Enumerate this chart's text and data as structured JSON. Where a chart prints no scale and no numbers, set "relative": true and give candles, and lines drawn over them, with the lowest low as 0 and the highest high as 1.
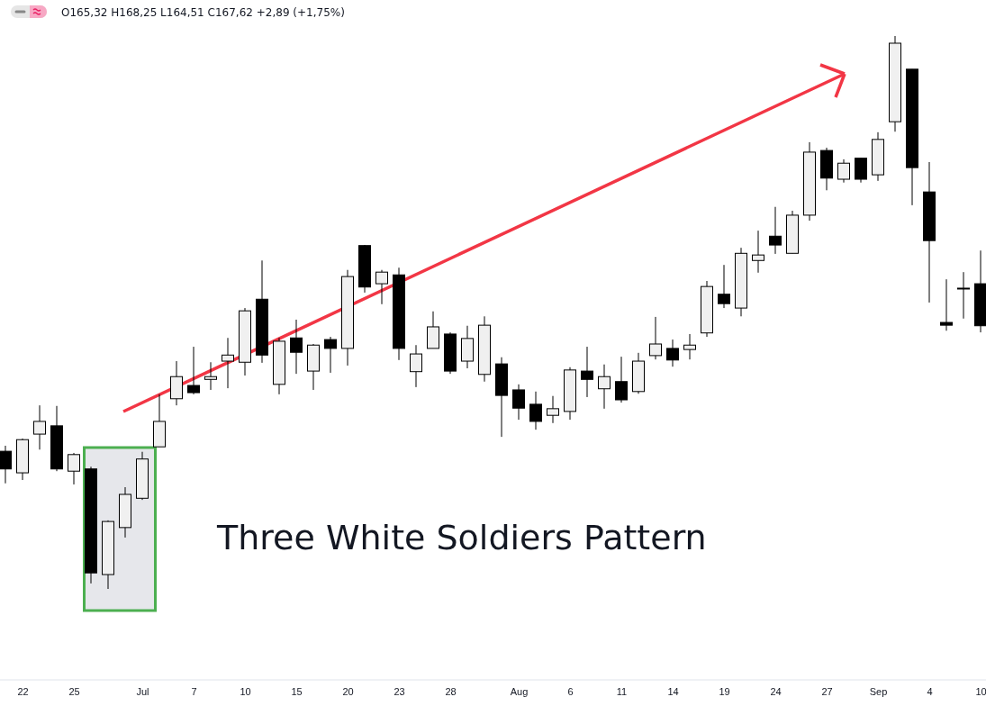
{
  "chart_data": {
    "type": "candlestick",
    "relative": true,
    "categories": [
      null,
      "22",
      null,
      null,
      "25",
      null,
      null,
      null,
      "Jul",
      null,
      null,
      "7",
      null,
      null,
      "10",
      null,
      null,
      "15",
      null,
      null,
      "20",
      null,
      null,
      "23",
      null,
      null,
      "28",
      null,
      null,
      null,
      "Aug",
      null,
      null,
      "6",
      null,
      null,
      "11",
      null,
      null,
      "14",
      null,
      null,
      "19",
      null,
      null,
      "24",
      null,
      null,
      "27",
      null,
      null,
      "Sep",
      null,
      null,
      "4",
      null,
      null,
      "10"
    ],
    "ohlc": [
      [
        0.249,
        0.259,
        0.191,
        0.217
      ],
      [
        0.21,
        0.272,
        0.197,
        0.27
      ],
      [
        0.28,
        0.332,
        0.252,
        0.303
      ],
      [
        0.295,
        0.331,
        0.213,
        0.217
      ],
      [
        0.213,
        0.246,
        0.189,
        0.243
      ],
      [
        0.217,
        0.221,
        0.01,
        0.029
      ],
      [
        0.026,
        0.124,
        0,
        0.122
      ],
      [
        0.111,
        0.184,
        0.093,
        0.171
      ],
      [
        0.164,
        0.248,
        0.161,
        0.235
      ],
      [
        0.257,
        0.352,
        0.257,
        0.303
      ],
      [
        0.344,
        0.412,
        0.332,
        0.384
      ],
      [
        0.368,
        0.438,
        0.352,
        0.355
      ],
      [
        0.379,
        0.41,
        0.36,
        0.384
      ],
      [
        0.412,
        0.454,
        0.363,
        0.423
      ],
      [
        0.41,
        0.508,
        0.386,
        0.503
      ],
      [
        0.524,
        0.594,
        0.409,
        0.423
      ],
      [
        0.37,
        0.454,
        0.352,
        0.448
      ],
      [
        0.454,
        0.487,
        0.389,
        0.428
      ],
      [
        0.394,
        0.443,
        0.36,
        0.441
      ],
      [
        0.451,
        0.456,
        0.391,
        0.435
      ],
      [
        0.435,
        0.577,
        0.404,
        0.565
      ],
      [
        0.621,
        0.622,
        0.536,
        0.546
      ],
      [
        0.552,
        0.577,
        0.515,
        0.573
      ],
      [
        0.568,
        0.581,
        0.414,
        0.435
      ],
      [
        0.393,
        0.441,
        0.365,
        0.425
      ],
      [
        0.435,
        0.502,
        0.435,
        0.474
      ],
      [
        0.461,
        0.464,
        0.389,
        0.394
      ],
      [
        0.412,
        0.476,
        0.399,
        0.453
      ],
      [
        0.388,
        0.493,
        0.375,
        0.477
      ],
      [
        0.407,
        0.419,
        0.275,
        0.35
      ],
      [
        0.36,
        0.37,
        0.306,
        0.327
      ],
      [
        0.334,
        0.357,
        0.288,
        0.303
      ],
      [
        0.314,
        0.349,
        0.3,
        0.326
      ],
      [
        0.321,
        0.401,
        0.306,
        0.396
      ],
      [
        0.394,
        0.438,
        0.347,
        0.379
      ],
      [
        0.362,
        0.406,
        0.326,
        0.384
      ],
      [
        0.375,
        0.42,
        0.337,
        0.342
      ],
      [
        0.357,
        0.427,
        0.353,
        0.412
      ],
      [
        0.422,
        0.492,
        0.415,
        0.443
      ],
      [
        0.435,
        0.451,
        0.402,
        0.414
      ],
      [
        0.433,
        0.461,
        0.415,
        0.441
      ],
      [
        0.463,
        0.557,
        0.456,
        0.547
      ],
      [
        0.533,
        0.586,
        0.508,
        0.516
      ],
      [
        0.508,
        0.617,
        0.493,
        0.607
      ],
      [
        0.594,
        0.648,
        0.572,
        0.604
      ],
      [
        0.638,
        0.691,
        0.606,
        0.622
      ],
      [
        0.607,
        0.684,
        0.607,
        0.676
      ],
      [
        0.676,
        0.808,
        0.666,
        0.79
      ],
      [
        0.793,
        0.798,
        0.721,
        0.743
      ],
      [
        0.741,
        0.777,
        0.735,
        0.77
      ],
      [
        0.779,
        0.779,
        0.735,
        0.741
      ],
      [
        0.749,
        0.826,
        0.738,
        0.813
      ],
      [
        0.845,
        1,
        0.827,
        0.987
      ],
      [
        0.94,
        0.94,
        0.694,
        0.762
      ],
      [
        0.718,
        0.772,
        0.518,
        0.63
      ],
      [
        0.482,
        0.56,
        0.467,
        0.477
      ],
      [
        0.544,
        0.573,
        0.489,
        0.544
      ],
      [
        0.552,
        0.612,
        0.464,
        0.476
      ]
    ],
    "annotations": [
      "O165,32 H168,25 L164,51 C167,62 +2,89 (+1,75%)",
      "Three White Soldiers Pattern"
    ]
  }
}
